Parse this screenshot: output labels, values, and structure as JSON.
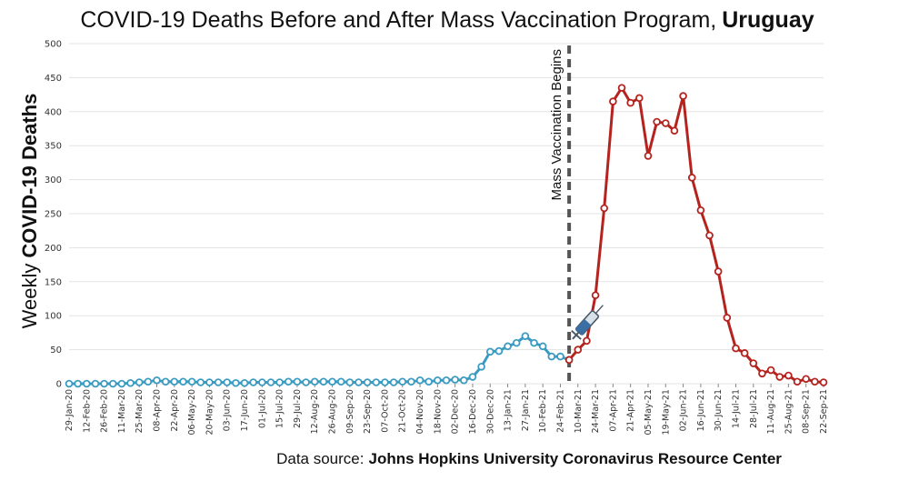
{
  "chart_data": {
    "type": "line",
    "title": "COVID-19 Deaths Before and After Mass Vaccination Program,",
    "title_bold": "Uruguay",
    "ylabel_prefix": "Weekly",
    "ylabel_bold": "COVID-19 Deaths",
    "xlabel": "",
    "ylim": [
      0,
      500
    ],
    "yticks": [
      0,
      50,
      100,
      150,
      200,
      250,
      300,
      350,
      400,
      450,
      500
    ],
    "grid": true,
    "legend": "none",
    "x_tick_labels": [
      "29-Jan-20",
      "12-Feb-20",
      "26-Feb-20",
      "11-Mar-20",
      "25-Mar-20",
      "08-Apr-20",
      "22-Apr-20",
      "06-May-20",
      "20-May-20",
      "03-Jun-20",
      "17-Jun-20",
      "01-Jul-20",
      "15-Jul-20",
      "29-Jul-20",
      "12-Aug-20",
      "26-Aug-20",
      "09-Sep-20",
      "23-Sep-20",
      "07-Oct-20",
      "21-Oct-20",
      "04-Nov-20",
      "18-Nov-20",
      "02-Dec-20",
      "16-Dec-20",
      "30-Dec-20",
      "13-Jan-21",
      "27-Jan-21",
      "10-Feb-21",
      "24-Feb-21",
      "10-Mar-21",
      "24-Mar-21",
      "07-Apr-21",
      "21-Apr-21",
      "05-May-21",
      "19-May-21",
      "02-Jun-21",
      "16-Jun-21",
      "30-Jun-21",
      "14-Jul-21",
      "28-Jul-21",
      "11-Aug-21",
      "25-Aug-21",
      "08-Sep-21",
      "22-Sep-21"
    ],
    "annotation": {
      "label": "Mass Vaccination Begins",
      "at_week": "03-Mar-21"
    },
    "series": [
      {
        "color": "#3a9bc1",
        "x": [
          "29-Jan-20",
          "05-Feb-20",
          "12-Feb-20",
          "19-Feb-20",
          "26-Feb-20",
          "04-Mar-20",
          "11-Mar-20",
          "18-Mar-20",
          "25-Mar-20",
          "01-Apr-20",
          "08-Apr-20",
          "15-Apr-20",
          "22-Apr-20",
          "29-Apr-20",
          "06-May-20",
          "13-May-20",
          "20-May-20",
          "27-May-20",
          "03-Jun-20",
          "10-Jun-20",
          "17-Jun-20",
          "24-Jun-20",
          "01-Jul-20",
          "08-Jul-20",
          "15-Jul-20",
          "22-Jul-20",
          "29-Jul-20",
          "05-Aug-20",
          "12-Aug-20",
          "19-Aug-20",
          "26-Aug-20",
          "02-Sep-20",
          "09-Sep-20",
          "16-Sep-20",
          "23-Sep-20",
          "30-Sep-20",
          "07-Oct-20",
          "14-Oct-20",
          "21-Oct-20",
          "28-Oct-20",
          "04-Nov-20",
          "11-Nov-20",
          "18-Nov-20",
          "25-Nov-20",
          "02-Dec-20",
          "09-Dec-20",
          "16-Dec-20",
          "23-Dec-20",
          "30-Dec-20",
          "06-Jan-21",
          "13-Jan-21",
          "20-Jan-21",
          "27-Jan-21",
          "03-Feb-21",
          "10-Feb-21",
          "17-Feb-21",
          "24-Feb-21",
          "03-Mar-21"
        ],
        "values": [
          0,
          0,
          0,
          0,
          0,
          0,
          0,
          1,
          2,
          3,
          5,
          3,
          3,
          3,
          3,
          2,
          2,
          2,
          2,
          1,
          1,
          2,
          2,
          2,
          2,
          3,
          3,
          2,
          3,
          3,
          3,
          3,
          2,
          2,
          2,
          2,
          2,
          2,
          3,
          3,
          5,
          3,
          5,
          5,
          6,
          5,
          10,
          25,
          47,
          48,
          55,
          60,
          70,
          60,
          55,
          40,
          40,
          35
        ]
      },
      {
        "color": "#b5231f",
        "x": [
          "03-Mar-21",
          "10-Mar-21",
          "17-Mar-21",
          "24-Mar-21",
          "31-Mar-21",
          "07-Apr-21",
          "14-Apr-21",
          "21-Apr-21",
          "28-Apr-21",
          "05-May-21",
          "12-May-21",
          "19-May-21",
          "26-May-21",
          "02-Jun-21",
          "09-Jun-21",
          "16-Jun-21",
          "23-Jun-21",
          "30-Jun-21",
          "07-Jul-21",
          "14-Jul-21",
          "21-Jul-21",
          "28-Jul-21",
          "04-Aug-21",
          "11-Aug-21",
          "18-Aug-21",
          "25-Aug-21",
          "01-Sep-21",
          "08-Sep-21",
          "15-Sep-21",
          "22-Sep-21"
        ],
        "values": [
          35,
          50,
          63,
          130,
          258,
          415,
          435,
          413,
          420,
          335,
          385,
          383,
          372,
          423,
          303,
          255,
          218,
          165,
          97,
          52,
          45,
          30,
          15,
          20,
          10,
          12,
          3,
          7,
          3,
          2
        ]
      }
    ],
    "source_prefix": "Data source:",
    "source_bold": "Johns Hopkins University Coronavirus Resource Center"
  }
}
